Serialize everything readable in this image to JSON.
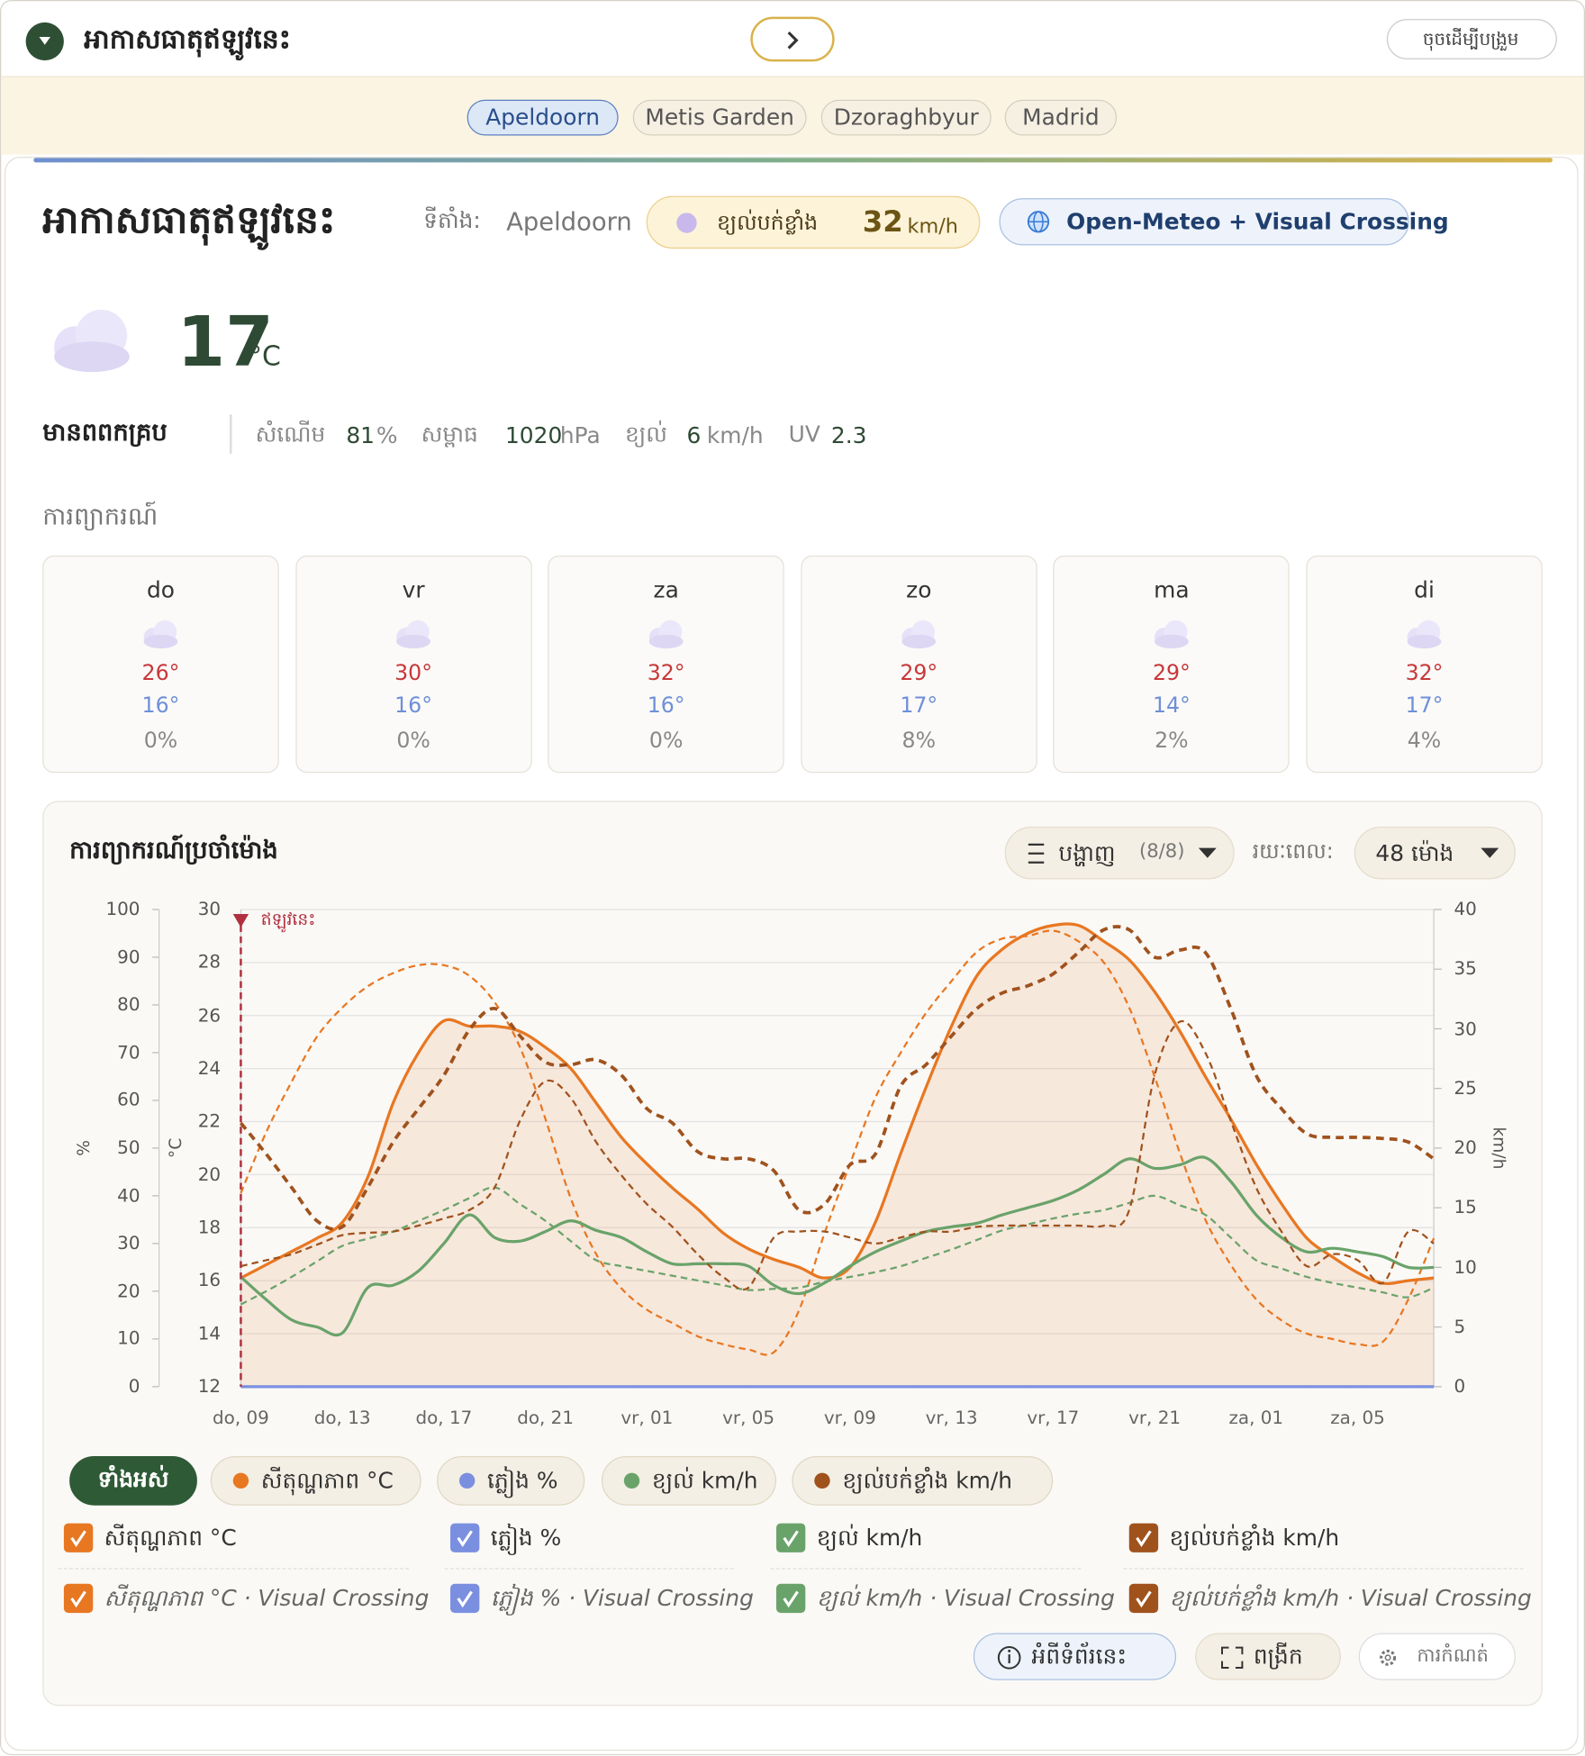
{
  "header": {
    "title": "អាកាសធាតុឥឡូវនេះ",
    "collapse_button": "ចុចដើម្បីបង្រួម"
  },
  "location_tabs": {
    "items": [
      "Apeldoorn",
      "Metis Garden",
      "Dzoraghbyur",
      "Madrid"
    ],
    "active": 0
  },
  "current": {
    "title": "អាកាសធាតុឥឡូវនេះ",
    "location_label": "ទីតាំង:",
    "location": "Apeldoorn",
    "gust_label": "ខ្យល់បក់ខ្លាំង",
    "gust_value": "32",
    "gust_unit": "km/h",
    "source": "Open-Meteo + Visual Crossing",
    "temperature": "17",
    "temperature_unit": "°C",
    "condition": "មានពពកគ្រប",
    "details": [
      {
        "label": "សំណើម",
        "value": "81",
        "unit": "%"
      },
      {
        "label": "សម្ពាធ",
        "value": "1020",
        "unit": "hPa"
      },
      {
        "label": "ខ្យល់",
        "value": "6",
        "unit": "km/h"
      },
      {
        "label": "UV",
        "value": "2.3"
      }
    ]
  },
  "forecast": {
    "title": "ការព្យាករណ៍",
    "days": [
      {
        "day": "do",
        "high": "26°",
        "low": "16°",
        "precip": "0%"
      },
      {
        "day": "vr",
        "high": "30°",
        "low": "16°",
        "precip": "0%"
      },
      {
        "day": "za",
        "high": "32°",
        "low": "16°",
        "precip": "0%"
      },
      {
        "day": "zo",
        "high": "29°",
        "low": "17°",
        "precip": "8%"
      },
      {
        "day": "ma",
        "high": "29°",
        "low": "14°",
        "precip": "2%"
      },
      {
        "day": "di",
        "high": "32°",
        "low": "17°",
        "precip": "4%"
      }
    ]
  },
  "hourly": {
    "title": "ការព្យាករណ៍ប្រចាំម៉ោង",
    "display_label": "បង្ហាញ",
    "display_count": "(8/8)",
    "period_label": "រយៈពេល:",
    "period_value": "48 ម៉ោង"
  },
  "chart_data": {
    "type": "line",
    "categories": [
      "do, 09",
      null,
      null,
      null,
      "do, 13",
      null,
      null,
      null,
      "do, 17",
      null,
      null,
      null,
      "do, 21",
      null,
      null,
      null,
      "vr, 01",
      null,
      null,
      null,
      "vr, 05",
      null,
      null,
      null,
      "vr, 09",
      null,
      null,
      null,
      "vr, 13",
      null,
      null,
      null,
      "vr, 17",
      null,
      null,
      null,
      "vr, 21",
      null,
      null,
      null,
      "za, 01",
      null,
      null,
      null,
      "za, 05",
      null,
      null,
      null
    ],
    "ylabel": "°C",
    "ylim": [
      12,
      30
    ],
    "yticks": [
      12,
      14,
      16,
      18,
      20,
      22,
      24,
      26,
      28,
      30
    ],
    "y2label": "km/h",
    "y2lim": [
      0,
      40
    ],
    "y2ticks": [
      0,
      5,
      10,
      15,
      20,
      25,
      30,
      35,
      40
    ],
    "y3label": "%",
    "y3lim": [
      0,
      100
    ],
    "y3ticks": [
      0,
      10,
      20,
      30,
      40,
      50,
      60,
      70,
      80,
      90,
      100
    ],
    "grid": true,
    "now_label": "ឥឡូវនេះ",
    "now_index": 0,
    "series": [
      {
        "name": "សីតុណ្ហភាព °C",
        "color": "#e87722",
        "axis": "y",
        "style": "solid",
        "fill": true,
        "values": [
          16.1,
          16.6,
          17.1,
          17.6,
          18.2,
          19.9,
          22.7,
          24.6,
          25.8,
          25.6,
          25.6,
          25.4,
          24.8,
          24,
          22.7,
          21.4,
          20.4,
          19.5,
          18.7,
          17.8,
          17.2,
          16.8,
          16.5,
          16.1,
          16.5,
          18.2,
          20.8,
          23.3,
          25.6,
          27.5,
          28.5,
          29.1,
          29.4,
          29.4,
          28.8,
          28.1,
          26.9,
          25.4,
          23.7,
          22.1,
          20.4,
          18.9,
          17.6,
          16.9,
          16.3,
          15.9,
          16,
          16.1
        ]
      },
      {
        "name": "សីតុណ្ហភាព °C · Visual Crossing",
        "color": "#e87722",
        "axis": "y",
        "style": "dashed",
        "values": [
          19.3,
          21.6,
          23.5,
          25.2,
          26.3,
          27.1,
          27.6,
          27.9,
          27.9,
          27.5,
          26.5,
          24.8,
          22.1,
          19.1,
          17,
          15.7,
          14.9,
          14.4,
          13.9,
          13.6,
          13.4,
          13.3,
          14.9,
          17.8,
          20.4,
          22.9,
          24.6,
          26.1,
          27.3,
          28.4,
          28.9,
          29,
          29.2,
          28.8,
          28,
          26.3,
          23.7,
          20.8,
          18.3,
          16.6,
          15.3,
          14.5,
          14,
          13.8,
          13.6,
          13.7,
          15.3,
          17.6
        ]
      },
      {
        "name": "ភ្លៀង %",
        "color": "#7b8fe0",
        "axis": "y3",
        "style": "solid",
        "values": [
          0,
          0,
          0,
          0,
          0,
          0,
          0,
          0,
          0,
          0,
          0,
          0,
          0,
          0,
          0,
          0,
          0,
          0,
          0,
          0,
          0,
          0,
          0,
          0,
          0,
          0,
          0,
          0,
          0,
          0,
          0,
          0,
          0,
          0,
          0,
          0,
          0,
          0,
          0,
          0,
          0,
          0,
          0,
          0,
          0,
          0,
          0,
          0
        ]
      },
      {
        "name": "ភ្លៀង % · Visual Crossing",
        "color": "#7b8fe0",
        "axis": "y3",
        "style": "dashed",
        "values": [
          0,
          0,
          0,
          0,
          0,
          0,
          0,
          0,
          0,
          0,
          0,
          0,
          0,
          0,
          0,
          0,
          0,
          0,
          0,
          0,
          0,
          0,
          0,
          0,
          0,
          0,
          0,
          0,
          0,
          0,
          0,
          0,
          0,
          0,
          0,
          0,
          0,
          0,
          0,
          0,
          0,
          0,
          0,
          0,
          0,
          0,
          0,
          0
        ]
      },
      {
        "name": "ខ្យល់ km/h",
        "color": "#6aa36a",
        "axis": "y2",
        "style": "solid",
        "values": [
          9.2,
          7.3,
          5.6,
          5,
          4.5,
          8.3,
          8.5,
          9.7,
          12,
          14.4,
          12.5,
          12.2,
          13,
          13.9,
          13.1,
          12.5,
          11.3,
          10.3,
          10.3,
          10.3,
          10.1,
          8.5,
          7.8,
          8.7,
          10.1,
          11.3,
          12.2,
          13,
          13.4,
          13.7,
          14.4,
          15,
          15.6,
          16.5,
          17.8,
          19.1,
          18.3,
          18.6,
          19.2,
          17.2,
          14.4,
          12.5,
          11.3,
          11.6,
          11.3,
          10.9,
          10,
          10
        ]
      },
      {
        "name": "ខ្យល់ km/h · Visual Crossing",
        "color": "#6aa36a",
        "axis": "y2",
        "style": "dashed",
        "values": [
          6.9,
          8,
          9.2,
          10.5,
          11.8,
          12.4,
          13,
          13.9,
          14.8,
          15.8,
          16.7,
          15.3,
          13.9,
          12.2,
          10.6,
          10.1,
          9.7,
          9.3,
          8.9,
          8.5,
          8.1,
          8.2,
          8.3,
          8.8,
          9.2,
          9.6,
          10.1,
          10.8,
          11.5,
          12.3,
          13.1,
          13.6,
          14.1,
          14.5,
          14.8,
          15.4,
          16,
          15.2,
          14.4,
          12.5,
          10.6,
          9.9,
          9.2,
          8.7,
          8.3,
          7.9,
          7.5,
          8.3
        ]
      },
      {
        "name": "ខ្យល់បក់ខ្លាំង km/h",
        "color": "#a0521d",
        "axis": "y2",
        "style": "dashed-bold",
        "values": [
          22.1,
          19.5,
          16.7,
          13.9,
          13.4,
          16.7,
          20.5,
          23.3,
          26.1,
          29.9,
          31.7,
          29.4,
          27.2,
          27,
          27.4,
          26.1,
          23.3,
          22.1,
          19.7,
          19.1,
          19.1,
          18.1,
          14.8,
          15.3,
          18.6,
          19.5,
          25.2,
          27,
          29.4,
          31.7,
          33,
          33.6,
          34.6,
          36.4,
          38.3,
          38.3,
          36,
          36.6,
          36.4,
          31.7,
          26.1,
          23.3,
          21.2,
          20.9,
          20.9,
          20.8,
          20.5,
          19.1
        ]
      },
      {
        "name": "ខ្យល់បក់ខ្លាំង km/h · Visual Crossing",
        "color": "#a0521d",
        "axis": "y2",
        "style": "dashed",
        "values": [
          10.1,
          10.6,
          11.1,
          11.9,
          12.7,
          12.9,
          13,
          13.5,
          14.1,
          14.8,
          16.7,
          22.3,
          25.6,
          24.2,
          20.5,
          17.7,
          15.3,
          13.4,
          11.1,
          9.2,
          8.3,
          12.5,
          13,
          13,
          12.5,
          12,
          12.5,
          13,
          13,
          13.4,
          13.5,
          13.5,
          13.5,
          13.5,
          13.5,
          14.8,
          26.1,
          30.6,
          28,
          22.3,
          16.7,
          13,
          10.1,
          11.1,
          10.6,
          8.7,
          13,
          12
        ]
      }
    ]
  },
  "filter_chips": {
    "items": [
      "ទាំងអស់",
      "សីតុណ្ហភាព °C",
      "ភ្លៀង %",
      "ខ្យល់ km/h",
      "ខ្យល់បក់ខ្លាំង km/h"
    ],
    "active": 0
  },
  "footer_buttons": [
    "អំពីទំព័រនេះ",
    "ពង្រីក",
    "ការកំណត់"
  ]
}
